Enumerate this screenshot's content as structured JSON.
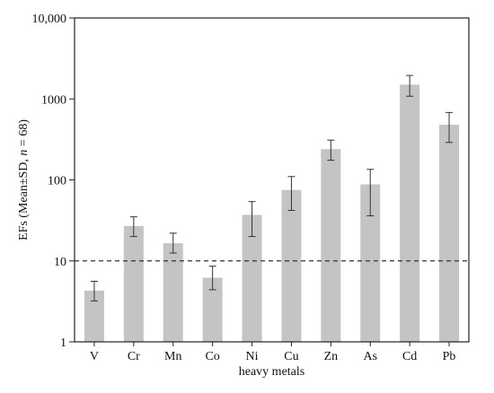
{
  "chart_data": {
    "type": "bar",
    "xlabel": "heavy metals",
    "ylabel_parts": [
      "EFs (Mean±SD, ",
      "n",
      " = 68)"
    ],
    "yscale": "log",
    "ylim": [
      1,
      10000
    ],
    "yticks": [
      1,
      10,
      100,
      1000,
      10000
    ],
    "ytick_labels": [
      "1",
      "10",
      "100",
      "1000",
      "10,000"
    ],
    "categories": [
      "V",
      "Cr",
      "Mn",
      "Co",
      "Ni",
      "Cu",
      "Zn",
      "As",
      "Cd",
      "Pb"
    ],
    "values": [
      4.3,
      27,
      16.5,
      6.2,
      37,
      75,
      240,
      88,
      1500,
      480
    ],
    "err_low": [
      3.2,
      20,
      12.5,
      4.4,
      20,
      42,
      175,
      36,
      1080,
      290
    ],
    "err_high": [
      5.6,
      35,
      22,
      8.6,
      54,
      110,
      310,
      135,
      1950,
      680
    ],
    "reference_line": 10,
    "bar_color": "#c4c4c4",
    "grid": false,
    "legend": "none"
  }
}
